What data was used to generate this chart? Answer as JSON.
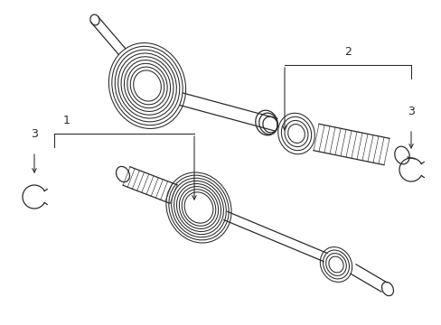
{
  "bg_color": "#ffffff",
  "line_color": "#2a2a2a",
  "figsize": [
    4.89,
    3.6
  ],
  "dpi": 100,
  "label1": "1",
  "label2": "2",
  "label3": "3",
  "font_size": 8,
  "lw": 0.9
}
